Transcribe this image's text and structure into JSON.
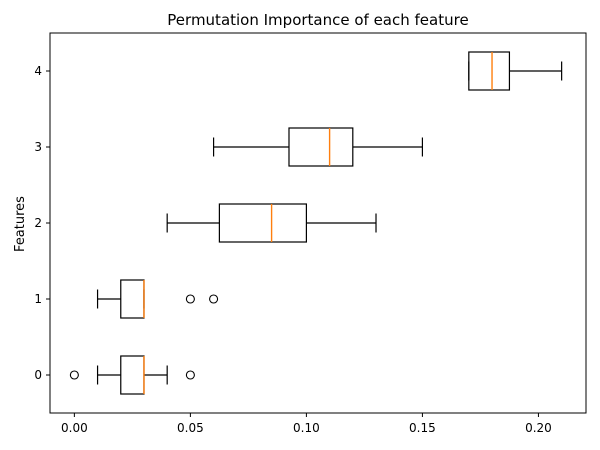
{
  "chart_data": {
    "type": "boxplot",
    "orientation": "horizontal",
    "title": "Permutation Importance of each feature",
    "xlabel": "",
    "ylabel": "Features",
    "xlim": [
      -0.0105,
      0.2205
    ],
    "ylim": [
      -0.5,
      4.5
    ],
    "x_ticks": [
      0.0,
      0.05,
      0.1,
      0.15,
      0.2
    ],
    "x_tick_labels": [
      "0.00",
      "0.05",
      "0.10",
      "0.15",
      "0.20"
    ],
    "y_ticks": [
      0,
      1,
      2,
      3,
      4
    ],
    "y_tick_labels": [
      "0",
      "1",
      "2",
      "3",
      "4"
    ],
    "grid": false,
    "box_color": "#000000",
    "median_color": "#ff7f0e",
    "boxes": [
      {
        "feature": "0",
        "whisker_low": 0.01,
        "q1": 0.02,
        "median": 0.03,
        "q3": 0.03,
        "whisker_high": 0.04,
        "outliers": [
          0.0,
          0.05
        ]
      },
      {
        "feature": "1",
        "whisker_low": 0.01,
        "q1": 0.02,
        "median": 0.03,
        "q3": 0.03,
        "whisker_high": 0.03,
        "outliers": [
          0.05,
          0.06
        ]
      },
      {
        "feature": "2",
        "whisker_low": 0.04,
        "q1": 0.0625,
        "median": 0.085,
        "q3": 0.1,
        "whisker_high": 0.13,
        "outliers": []
      },
      {
        "feature": "3",
        "whisker_low": 0.06,
        "q1": 0.0925,
        "median": 0.11,
        "q3": 0.12,
        "whisker_high": 0.15,
        "outliers": []
      },
      {
        "feature": "4",
        "whisker_low": 0.17,
        "q1": 0.17,
        "median": 0.18,
        "q3": 0.1875,
        "whisker_high": 0.21,
        "outliers": []
      }
    ]
  }
}
